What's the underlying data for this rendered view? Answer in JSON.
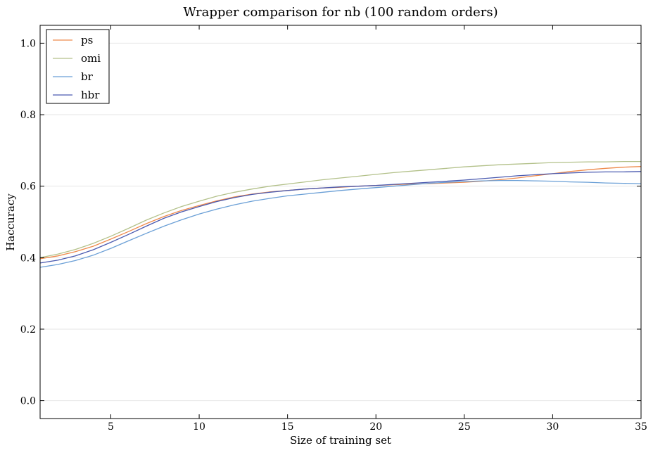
{
  "chart_data": {
    "type": "line",
    "title": "Wrapper comparison for nb (100 random orders)",
    "xlabel": "Size of training set",
    "ylabel": "Haccuracy",
    "xlim": [
      1,
      35
    ],
    "ylim": [
      -0.05,
      1.05
    ],
    "xticks": [
      5,
      10,
      15,
      20,
      25,
      30,
      35
    ],
    "xtick_labels": [
      "5",
      "10",
      "15",
      "20",
      "25",
      "30",
      "35"
    ],
    "yticks": [
      0.0,
      0.2,
      0.4,
      0.6,
      0.8,
      1.0
    ],
    "ytick_labels": [
      "0.0",
      "0.2",
      "0.4",
      "0.6",
      "0.8",
      "1.0"
    ],
    "grid": "horizontal",
    "legend_position": "top-left",
    "x": [
      1,
      2,
      3,
      4,
      5,
      6,
      7,
      8,
      9,
      10,
      11,
      12,
      13,
      14,
      15,
      16,
      17,
      18,
      19,
      20,
      21,
      22,
      23,
      24,
      25,
      26,
      27,
      28,
      29,
      30,
      31,
      32,
      33,
      34,
      35
    ],
    "series": [
      {
        "name": "ps",
        "color": "#ee8a4c",
        "values": [
          0.397,
          0.405,
          0.417,
          0.432,
          0.452,
          0.473,
          0.495,
          0.515,
          0.532,
          0.546,
          0.559,
          0.57,
          0.578,
          0.584,
          0.588,
          0.592,
          0.595,
          0.597,
          0.6,
          0.602,
          0.604,
          0.606,
          0.607,
          0.609,
          0.611,
          0.614,
          0.618,
          0.623,
          0.629,
          0.635,
          0.641,
          0.646,
          0.65,
          0.653,
          0.655
        ]
      },
      {
        "name": "omi",
        "color": "#b3c18a",
        "values": [
          0.4,
          0.41,
          0.423,
          0.44,
          0.46,
          0.482,
          0.505,
          0.525,
          0.543,
          0.558,
          0.572,
          0.583,
          0.592,
          0.6,
          0.606,
          0.612,
          0.618,
          0.623,
          0.628,
          0.633,
          0.638,
          0.642,
          0.646,
          0.65,
          0.654,
          0.657,
          0.66,
          0.662,
          0.664,
          0.666,
          0.667,
          0.668,
          0.668,
          0.669,
          0.669
        ]
      },
      {
        "name": "br",
        "color": "#6a9fd6",
        "values": [
          0.373,
          0.381,
          0.392,
          0.407,
          0.426,
          0.447,
          0.468,
          0.488,
          0.506,
          0.522,
          0.536,
          0.548,
          0.558,
          0.566,
          0.573,
          0.578,
          0.583,
          0.588,
          0.592,
          0.596,
          0.6,
          0.604,
          0.608,
          0.611,
          0.613,
          0.615,
          0.616,
          0.616,
          0.615,
          0.614,
          0.612,
          0.611,
          0.609,
          0.608,
          0.607
        ]
      },
      {
        "name": "hbr",
        "color": "#4a5ab0",
        "values": [
          0.385,
          0.393,
          0.405,
          0.422,
          0.443,
          0.465,
          0.488,
          0.51,
          0.528,
          0.543,
          0.557,
          0.568,
          0.577,
          0.583,
          0.588,
          0.592,
          0.595,
          0.598,
          0.6,
          0.602,
          0.605,
          0.608,
          0.611,
          0.614,
          0.617,
          0.621,
          0.625,
          0.629,
          0.632,
          0.635,
          0.637,
          0.639,
          0.64,
          0.64,
          0.641
        ]
      }
    ]
  }
}
